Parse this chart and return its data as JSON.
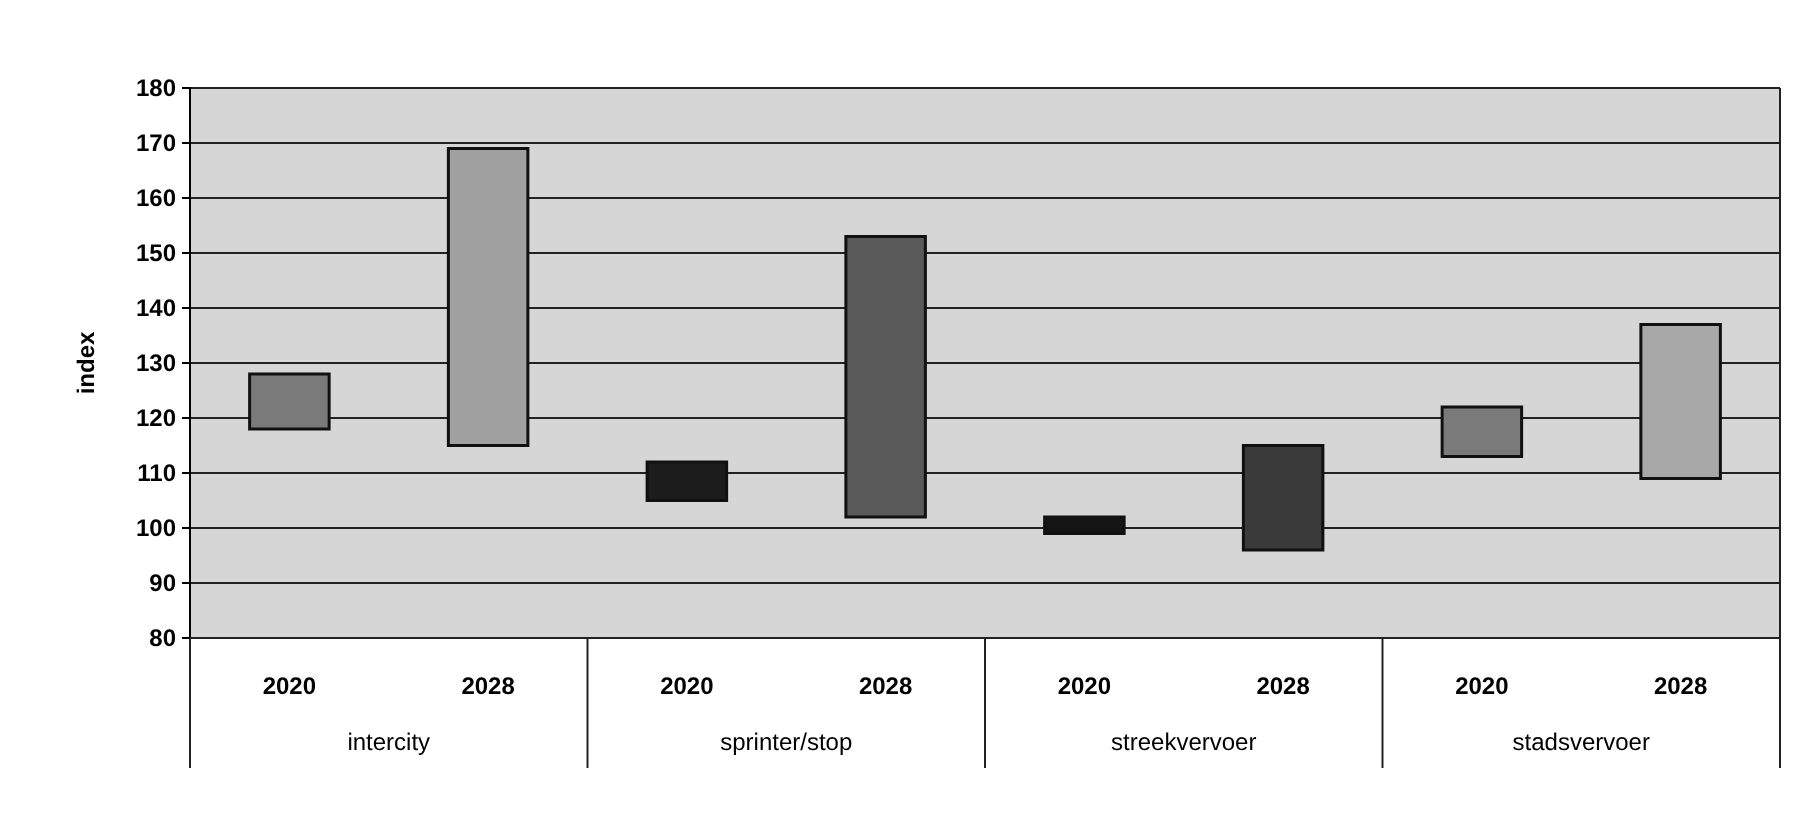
{
  "chart_data": {
    "type": "bar",
    "ylabel": "index",
    "categories": [
      "2020",
      "2028",
      "2020",
      "2028",
      "2020",
      "2028",
      "2020",
      "2028"
    ],
    "base": [
      118,
      115,
      105,
      102,
      99,
      96,
      113,
      109
    ],
    "values": [
      10,
      54,
      7,
      51,
      3,
      19,
      9,
      28
    ],
    "colors": [
      "#7a7a7a",
      "#a0a0a0",
      "#1c1c1c",
      "#5a5a5a",
      "#151515",
      "#3a3a3a",
      "#7a7a7a",
      "#a8a8a8"
    ],
    "annotations": [
      "intercity",
      "sprinter/stop",
      "streekvervoer",
      "stadsvervoer"
    ],
    "ylim": [
      80,
      180
    ],
    "yticks": [
      80,
      90,
      100,
      110,
      120,
      130,
      140,
      150,
      160,
      170,
      180
    ],
    "grid": "y"
  }
}
